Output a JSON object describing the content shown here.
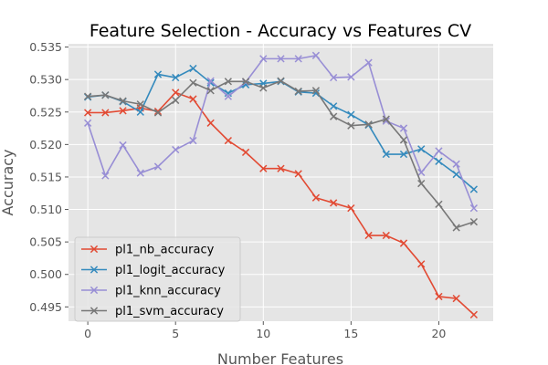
{
  "chart_data": {
    "type": "line",
    "title": "Feature Selection - Accuracy vs Features CV",
    "xlabel": "Number Features",
    "ylabel": "Accuracy",
    "xlim": [
      -1.1,
      23.1
    ],
    "ylim": [
      0.4928,
      0.5355
    ],
    "xticks": [
      0,
      5,
      10,
      15,
      20
    ],
    "yticks": [
      0.495,
      0.5,
      0.505,
      0.51,
      0.515,
      0.52,
      0.525,
      0.53,
      0.535
    ],
    "ytick_labels": [
      "0.495",
      "0.500",
      "0.505",
      "0.510",
      "0.515",
      "0.520",
      "0.525",
      "0.530",
      "0.535"
    ],
    "grid": true,
    "legend_position": "lower-left",
    "marker": "x",
    "x": [
      0,
      1,
      2,
      3,
      4,
      5,
      6,
      7,
      8,
      9,
      10,
      11,
      12,
      13,
      14,
      15,
      16,
      17,
      18,
      19,
      20,
      21,
      22
    ],
    "series": [
      {
        "name": "pl1_nb_accuracy",
        "color": "#E24A33",
        "values": [
          0.5249,
          0.5249,
          0.5252,
          0.5256,
          0.5251,
          0.528,
          0.527,
          0.5233,
          0.5206,
          0.5188,
          0.5163,
          0.5163,
          0.5155,
          0.5118,
          0.511,
          0.5102,
          0.506,
          0.506,
          0.5048,
          0.5016,
          0.4966,
          0.4963,
          0.4938
        ]
      },
      {
        "name": "pl1_logit_accuracy",
        "color": "#348ABD",
        "values": [
          0.5273,
          0.5276,
          0.5266,
          0.525,
          0.5308,
          0.5303,
          0.5317,
          0.5295,
          0.5279,
          0.5292,
          0.5294,
          0.5297,
          0.5281,
          0.5279,
          0.5259,
          0.5246,
          0.523,
          0.5185,
          0.5185,
          0.5193,
          0.5174,
          0.5154,
          0.5131
        ]
      },
      {
        "name": "pl1_knn_accuracy",
        "color": "#988ED5",
        "values": [
          0.5233,
          0.5152,
          0.5199,
          0.5156,
          0.5166,
          0.5192,
          0.5206,
          0.5298,
          0.5274,
          0.5296,
          0.5332,
          0.5332,
          0.5332,
          0.5337,
          0.5303,
          0.5304,
          0.5326,
          0.5236,
          0.5225,
          0.5157,
          0.519,
          0.517,
          0.5102
        ]
      },
      {
        "name": "pl1_svm_accuracy",
        "color": "#777777",
        "values": [
          0.5274,
          0.5276,
          0.5267,
          0.5262,
          0.5249,
          0.5268,
          0.5295,
          0.5283,
          0.5297,
          0.5297,
          0.5287,
          0.5298,
          0.5282,
          0.5283,
          0.5243,
          0.5229,
          0.5231,
          0.5239,
          0.5207,
          0.514,
          0.5108,
          0.5072,
          0.5081
        ]
      }
    ]
  }
}
